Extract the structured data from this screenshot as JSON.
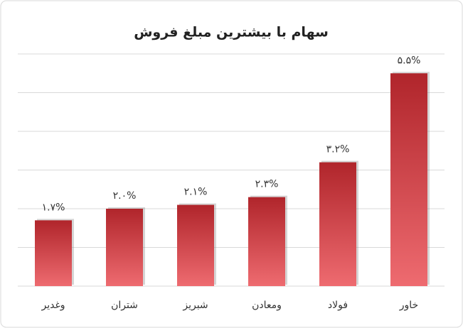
{
  "chart_data": {
    "type": "bar",
    "title": "سهام با بیشترین مبلغ فروش",
    "categories": [
      "وغدیر",
      "شتران",
      "شبریز",
      "ومعادن",
      "فولاد",
      "خاور"
    ],
    "values": [
      1.7,
      2.0,
      2.1,
      2.3,
      3.2,
      5.5
    ],
    "value_labels": [
      "۱.۷%",
      "۲.۰%",
      "۲.۱%",
      "۲.۳%",
      "۳.۲%",
      "۵.۵%"
    ],
    "color": "#b0252b",
    "ylim": [
      0,
      6
    ],
    "yticks": [
      0,
      1,
      2,
      3,
      4,
      5,
      6
    ],
    "grid": true
  }
}
